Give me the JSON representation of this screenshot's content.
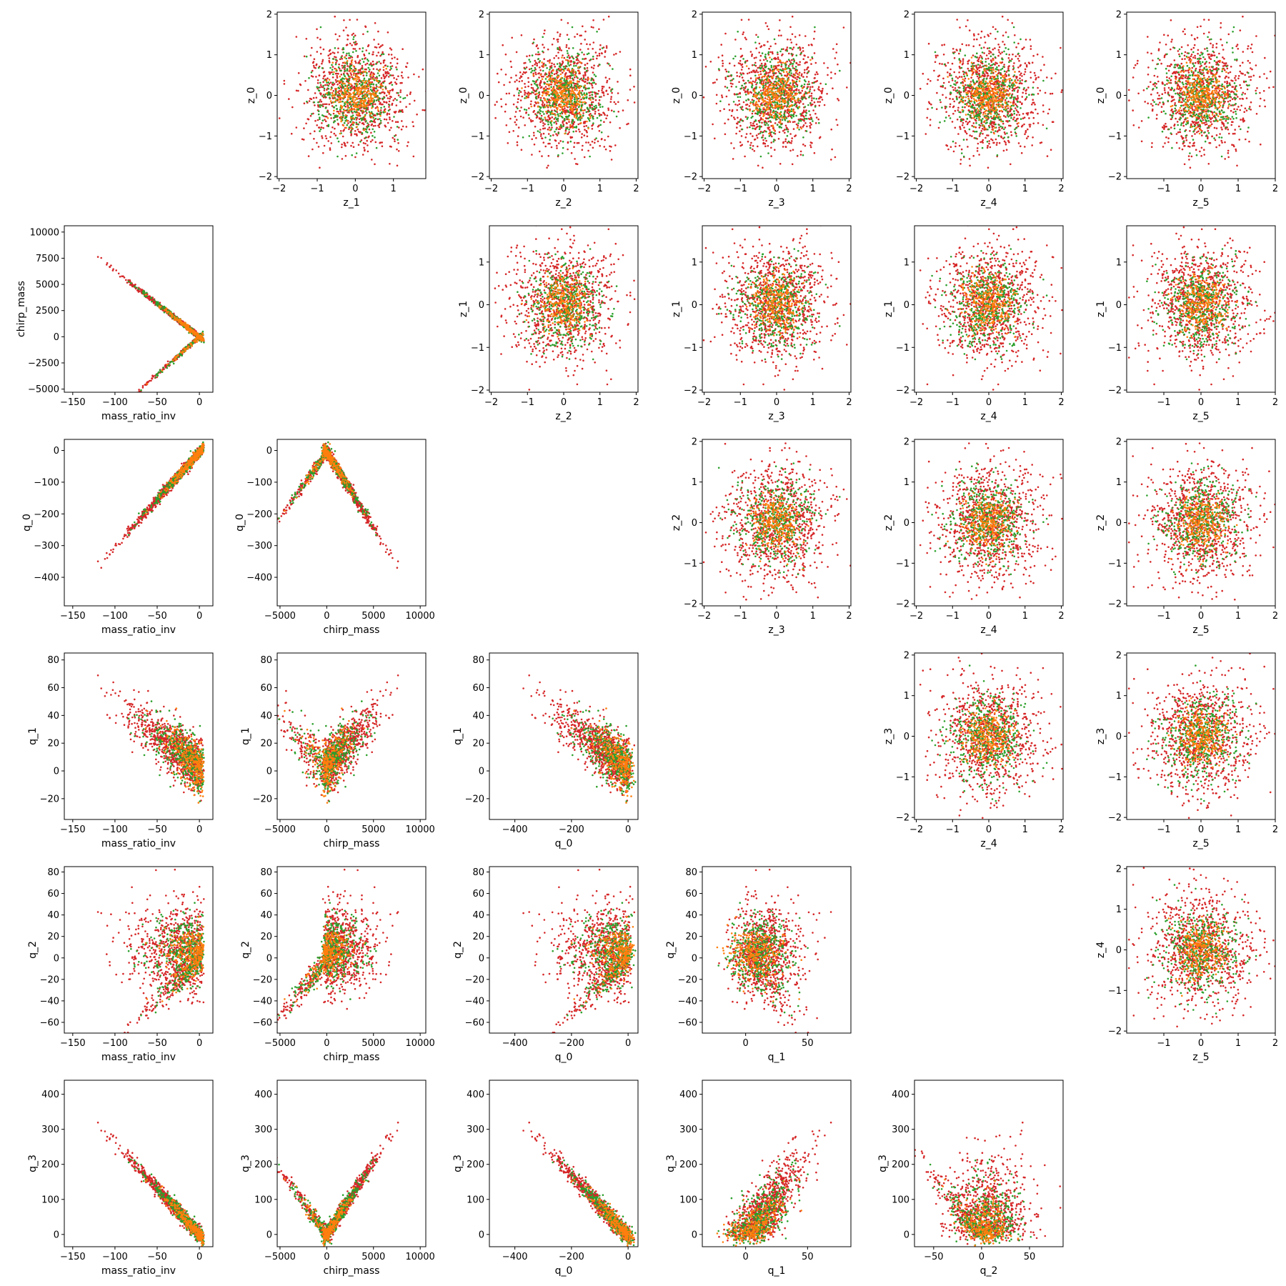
{
  "chart_data": {
    "type": "scatter",
    "layout": "pair-plot",
    "grid": false,
    "series_colors": [
      "#d62728",
      "#2ca02c",
      "#ff7f0e"
    ],
    "variables": {
      "z_0": {
        "label": "z_0",
        "range": [
          -2.05,
          2.05
        ],
        "ticks": [
          -2,
          -1,
          0,
          1,
          2
        ],
        "dist": {
          "type": "normal",
          "sd": 0.62
        }
      },
      "z_1": {
        "label": "z_1",
        "range": [
          -2.05,
          1.85
        ],
        "ticks": [
          -2,
          -1,
          0,
          1
        ],
        "dist": {
          "type": "normal",
          "sd": 0.62
        }
      },
      "z_2": {
        "label": "z_2",
        "range": [
          -2.05,
          2.05
        ],
        "ticks": [
          -2,
          -1,
          0,
          1,
          2
        ],
        "dist": {
          "type": "normal",
          "sd": 0.62
        }
      },
      "z_3": {
        "label": "z_3",
        "range": [
          -2.05,
          2.05
        ],
        "ticks": [
          -2,
          -1,
          0,
          1,
          2
        ],
        "dist": {
          "type": "normal",
          "sd": 0.62
        }
      },
      "z_4": {
        "label": "z_4",
        "range": [
          -2.05,
          2.05
        ],
        "ticks": [
          -2,
          -1,
          0,
          1,
          2
        ],
        "dist": {
          "type": "normal",
          "sd": 0.62
        }
      },
      "z_5": {
        "label": "z_5",
        "range": [
          -2.0,
          2.0
        ],
        "ticks": [
          -1,
          0,
          1,
          2
        ],
        "dist": {
          "type": "normal",
          "sd": 0.62
        }
      },
      "mass_ratio_inv": {
        "label": "mass_ratio_inv",
        "range": [
          -160,
          16
        ],
        "ticks": [
          -150,
          -100,
          -50,
          0
        ],
        "dist": {
          "type": "neg-exp",
          "scale": 36
        }
      },
      "chirp_mass": {
        "label": "chirp_mass",
        "range": [
          -5300,
          10600
        ],
        "ticks": [
          -5000,
          0,
          5000,
          10000
        ],
        "yticks": [
          -5000,
          -2500,
          0,
          2500,
          5000,
          7500,
          10000
        ]
      },
      "q_0": {
        "label": "q_0",
        "range": [
          -490,
          35
        ],
        "ticks": [
          -400,
          -200,
          0
        ],
        "yticks": [
          -400,
          -300,
          -200,
          -100,
          0
        ]
      },
      "q_1": {
        "label": "q_1",
        "range": [
          -35,
          85
        ],
        "ticks": [
          0,
          50
        ],
        "yticks": [
          -20,
          0,
          20,
          40,
          60,
          80
        ]
      },
      "q_2": {
        "label": "q_2",
        "range": [
          -70,
          85
        ],
        "ticks": [
          -50,
          0,
          50
        ],
        "yticks": [
          -60,
          -40,
          -20,
          0,
          20,
          40,
          60,
          80
        ]
      },
      "q_3": {
        "label": "q_3",
        "range": [
          -35,
          440
        ],
        "ticks": [
          0,
          100,
          200,
          300,
          400
        ]
      }
    },
    "relations": {
      "chirp_mass": "piecewise-linear in mass_ratio_inv: +63*x for x<0 branch A, -78*x branch B",
      "q_0": "approx 3*mass_ratio_inv",
      "q_1": "cloud correlated negatively with mass_ratio_inv",
      "q_2": "broad cloud with linear tail toward q_0",
      "q_3": "approx -2.6*mass_ratio_inv"
    },
    "panels": [
      {
        "row": 0,
        "col": 1,
        "x": "z_1",
        "y": "z_0"
      },
      {
        "row": 0,
        "col": 2,
        "x": "z_2",
        "y": "z_0"
      },
      {
        "row": 0,
        "col": 3,
        "x": "z_3",
        "y": "z_0"
      },
      {
        "row": 0,
        "col": 4,
        "x": "z_4",
        "y": "z_0"
      },
      {
        "row": 0,
        "col": 5,
        "x": "z_5",
        "y": "z_0"
      },
      {
        "row": 1,
        "col": 0,
        "x": "mass_ratio_inv",
        "y": "chirp_mass"
      },
      {
        "row": 1,
        "col": 2,
        "x": "z_2",
        "y": "z_1"
      },
      {
        "row": 1,
        "col": 3,
        "x": "z_3",
        "y": "z_1"
      },
      {
        "row": 1,
        "col": 4,
        "x": "z_4",
        "y": "z_1"
      },
      {
        "row": 1,
        "col": 5,
        "x": "z_5",
        "y": "z_1"
      },
      {
        "row": 2,
        "col": 0,
        "x": "mass_ratio_inv",
        "y": "q_0"
      },
      {
        "row": 2,
        "col": 1,
        "x": "chirp_mass",
        "y": "q_0"
      },
      {
        "row": 2,
        "col": 3,
        "x": "z_3",
        "y": "z_2"
      },
      {
        "row": 2,
        "col": 4,
        "x": "z_4",
        "y": "z_2"
      },
      {
        "row": 2,
        "col": 5,
        "x": "z_5",
        "y": "z_2"
      },
      {
        "row": 3,
        "col": 0,
        "x": "mass_ratio_inv",
        "y": "q_1"
      },
      {
        "row": 3,
        "col": 1,
        "x": "chirp_mass",
        "y": "q_1"
      },
      {
        "row": 3,
        "col": 2,
        "x": "q_0",
        "y": "q_1"
      },
      {
        "row": 3,
        "col": 4,
        "x": "z_4",
        "y": "z_3"
      },
      {
        "row": 3,
        "col": 5,
        "x": "z_5",
        "y": "z_3"
      },
      {
        "row": 4,
        "col": 0,
        "x": "mass_ratio_inv",
        "y": "q_2"
      },
      {
        "row": 4,
        "col": 1,
        "x": "chirp_mass",
        "y": "q_2"
      },
      {
        "row": 4,
        "col": 2,
        "x": "q_0",
        "y": "q_2"
      },
      {
        "row": 4,
        "col": 3,
        "x": "q_1",
        "y": "q_2"
      },
      {
        "row": 4,
        "col": 5,
        "x": "z_5",
        "y": "z_4"
      },
      {
        "row": 5,
        "col": 0,
        "x": "mass_ratio_inv",
        "y": "q_3"
      },
      {
        "row": 5,
        "col": 1,
        "x": "chirp_mass",
        "y": "q_3"
      },
      {
        "row": 5,
        "col": 2,
        "x": "q_0",
        "y": "q_3"
      },
      {
        "row": 5,
        "col": 3,
        "x": "q_1",
        "y": "q_3"
      },
      {
        "row": 5,
        "col": 4,
        "x": "q_2",
        "y": "q_3"
      }
    ]
  }
}
